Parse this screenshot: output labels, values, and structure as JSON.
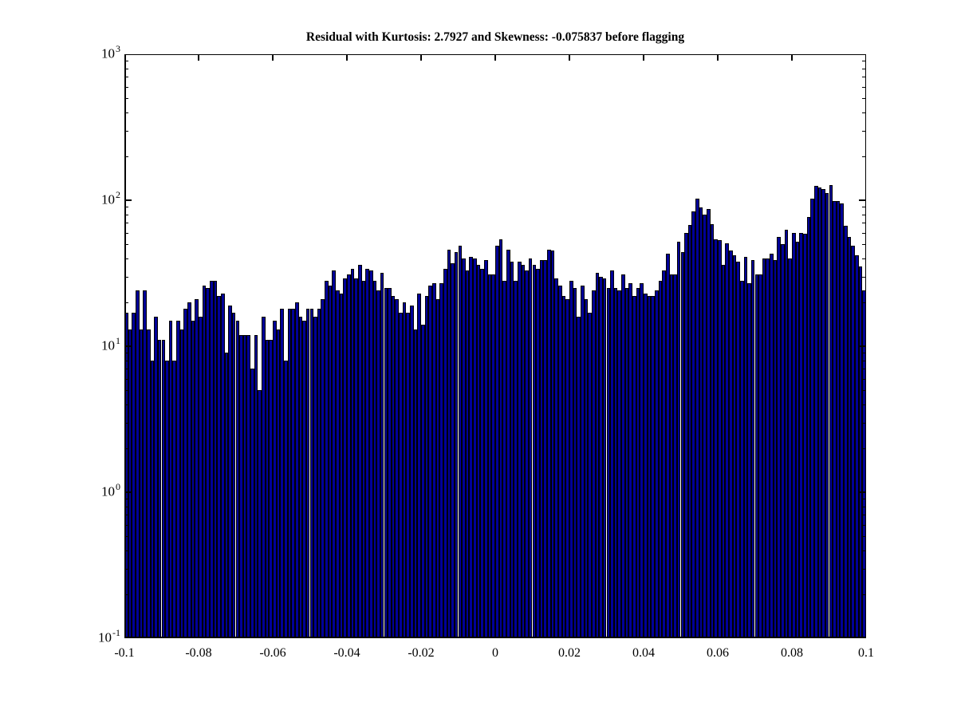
{
  "figure": {
    "background_color": "#ffffff",
    "title": "Residual with Kurtosis: 2.7927 and Skewness: -0.075837 before flagging"
  },
  "chart_data": {
    "type": "bar",
    "subtype": "histogram-log-y",
    "title": "Residual with Kurtosis: 2.7927 and Skewness: -0.075837 before flagging",
    "xlabel": "",
    "ylabel": "",
    "grid": false,
    "legend": null,
    "xlim": [
      -0.1,
      0.1
    ],
    "ylim_exponents": [
      -1,
      3
    ],
    "y_scale": "log10",
    "y_base_label": "10",
    "y_tick_exponents": [
      3,
      2,
      1,
      0,
      -1
    ],
    "x_tick_values": [
      -0.1,
      -0.08,
      -0.06,
      -0.04,
      -0.02,
      0,
      0.02,
      0.04,
      0.06,
      0.08,
      0.1
    ],
    "x_tick_labels": [
      "-0.1",
      "-0.08",
      "-0.06",
      "-0.04",
      "-0.02",
      "0",
      "0.02",
      "0.04",
      "0.06",
      "0.08",
      "0.1"
    ],
    "bin_start": -0.1,
    "bin_width": 0.001,
    "n_bins": 200,
    "bar_face_color": "#000099",
    "bar_edge_color": "#000000",
    "values": [
      17,
      13,
      17,
      24,
      13,
      24,
      13,
      8,
      16,
      11,
      11,
      8,
      15,
      8,
      15,
      13,
      18,
      20,
      15,
      21,
      16,
      26,
      25,
      28,
      28,
      22,
      23,
      9,
      19,
      17,
      15,
      12,
      12,
      12,
      7,
      12,
      5,
      16,
      11,
      11,
      15,
      13,
      18,
      8,
      18,
      18,
      20,
      16,
      15,
      18,
      18,
      16,
      18,
      21,
      28,
      26,
      33,
      24,
      23,
      29,
      31,
      34,
      29,
      36,
      28,
      34,
      33,
      28,
      24,
      32,
      25,
      25,
      22,
      21,
      17,
      20,
      17,
      19,
      13,
      23,
      14,
      22,
      26,
      27,
      21,
      27,
      34,
      46,
      37,
      44,
      49,
      40,
      33,
      41,
      40,
      36,
      34,
      39,
      31,
      31,
      49,
      54,
      28,
      46,
      38,
      28,
      38,
      36,
      33,
      40,
      36,
      34,
      39,
      39,
      46,
      45,
      29,
      26,
      22,
      21,
      28,
      25,
      16,
      26,
      21,
      17,
      24,
      32,
      30,
      29,
      25,
      33,
      25,
      24,
      31,
      25,
      27,
      22,
      25,
      27,
      23,
      22,
      22,
      24,
      28,
      33,
      43,
      31,
      31,
      52,
      44,
      60,
      68,
      84,
      103,
      89,
      80,
      87,
      69,
      54,
      53,
      36,
      51,
      45,
      42,
      38,
      28,
      41,
      27,
      39,
      31,
      31,
      40,
      40,
      43,
      39,
      56,
      50,
      63,
      40,
      60,
      52,
      60,
      59,
      77,
      103,
      125,
      122,
      120,
      112,
      127,
      99,
      99,
      95,
      67,
      56,
      49,
      42,
      35,
      24
    ]
  }
}
